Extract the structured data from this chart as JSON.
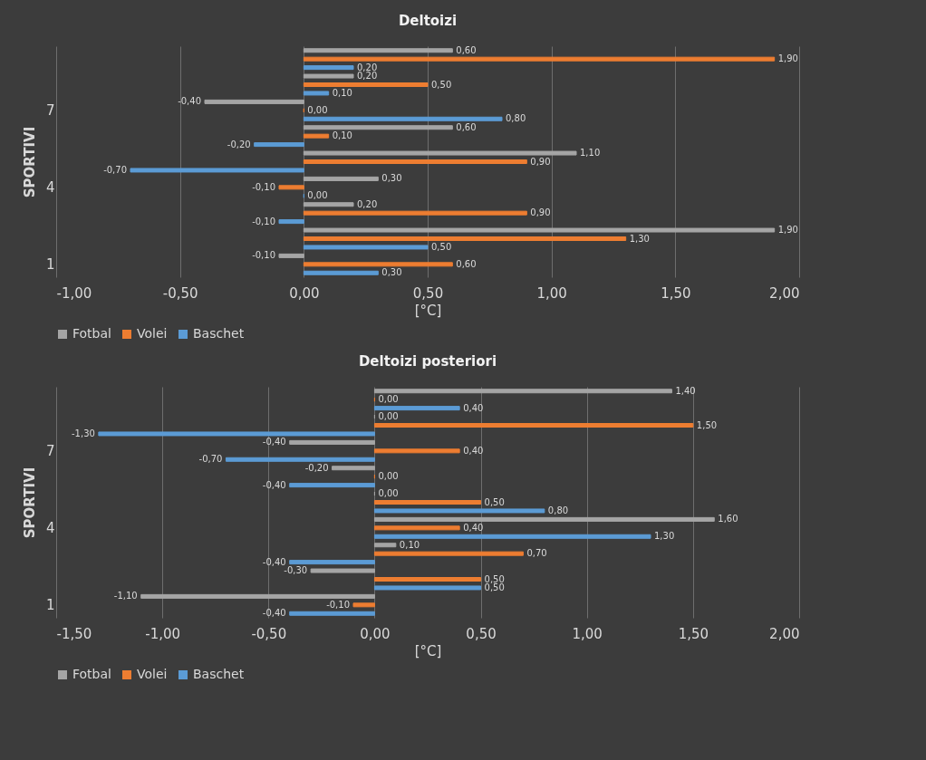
{
  "chart_data": [
    {
      "type": "bar",
      "orientation": "horizontal",
      "title": "Deltoizi",
      "xlabel": "[°C]",
      "ylabel": "SPORTIVI",
      "categories": [
        null,
        null,
        "7",
        null,
        null,
        "4",
        null,
        null,
        "1"
      ],
      "series": [
        {
          "name": "Fotbal",
          "color": "#a5a5a5",
          "values": [
            0.6,
            0.2,
            -0.4,
            0.6,
            1.1,
            0.3,
            0.2,
            1.9,
            -0.1
          ],
          "value_labels": [
            "0,60",
            "0,20",
            "-0,40",
            "0,60",
            "1,10",
            "0,30",
            "0,20",
            "1,90",
            "-0,10"
          ]
        },
        {
          "name": "Volei",
          "color": "#ed7d31",
          "values": [
            1.9,
            0.5,
            0.0,
            0.1,
            0.9,
            -0.1,
            0.9,
            1.3,
            0.6
          ],
          "value_labels": [
            "1,90",
            "0,50",
            "0,00",
            "0,10",
            "0,90",
            "-0,10",
            "0,90",
            "1,30",
            "0,60"
          ]
        },
        {
          "name": "Baschet",
          "color": "#5b9bd5",
          "values": [
            0.2,
            0.1,
            0.8,
            -0.2,
            -0.7,
            0.0,
            -0.1,
            0.5,
            0.3
          ],
          "value_labels": [
            "0,20",
            "0,10",
            "0,80",
            "-0,20",
            "-0,70",
            "0,00",
            "-0,10",
            "0,50",
            "0,30"
          ]
        }
      ],
      "xlim": [
        -1,
        2
      ],
      "xticks": [
        {
          "value": -1,
          "label": "-1,00"
        },
        {
          "value": -0.5,
          "label": "-0,50"
        },
        {
          "value": 0,
          "label": "0,00"
        },
        {
          "value": 0.5,
          "label": "0,50"
        },
        {
          "value": 1,
          "label": "1,00"
        },
        {
          "value": 1.5,
          "label": "1,50"
        },
        {
          "value": 2,
          "label": "2,00"
        }
      ],
      "grid": "x",
      "legend": "bottom"
    },
    {
      "type": "bar",
      "orientation": "horizontal",
      "title": "Deltoizi posteriori",
      "xlabel": "[°C]",
      "ylabel": "SPORTIVI",
      "categories": [
        null,
        null,
        "7",
        null,
        null,
        "4",
        null,
        null,
        "1"
      ],
      "series": [
        {
          "name": "Fotbal",
          "color": "#a5a5a5",
          "values": [
            1.4,
            0.0,
            -0.4,
            -0.2,
            0.0,
            1.6,
            0.1,
            -0.3,
            -1.1
          ],
          "value_labels": [
            "1,40",
            "0,00",
            "-0,40",
            "-0,20",
            "0,00",
            "1,60",
            "0,10",
            "-0,30",
            "-1,10"
          ]
        },
        {
          "name": "Volei",
          "color": "#ed7d31",
          "values": [
            0.0,
            1.5,
            0.4,
            0.0,
            0.5,
            0.4,
            0.7,
            0.5,
            -0.1
          ],
          "value_labels": [
            "0,00",
            "1,50",
            "0,40",
            "0,00",
            "0,50",
            "0,40",
            "0,70",
            "0,50",
            "-0,10"
          ]
        },
        {
          "name": "Baschet",
          "color": "#5b9bd5",
          "values": [
            0.4,
            -1.3,
            -0.7,
            -0.4,
            0.8,
            1.3,
            -0.4,
            0.5,
            -0.4
          ],
          "value_labels": [
            "0,40",
            "-1,30",
            "-0,70",
            "-0,40",
            "0,80",
            "1,30",
            "-0,40",
            "0,50",
            "-0,40"
          ]
        }
      ],
      "xlim": [
        -1.5,
        2
      ],
      "xticks": [
        {
          "value": -1.5,
          "label": "-1,50"
        },
        {
          "value": -1,
          "label": "-1,00"
        },
        {
          "value": -0.5,
          "label": "-0,50"
        },
        {
          "value": 0,
          "label": "0,00"
        },
        {
          "value": 0.5,
          "label": "0,50"
        },
        {
          "value": 1,
          "label": "1,00"
        },
        {
          "value": 1.5,
          "label": "1,50"
        },
        {
          "value": 2,
          "label": "2,00"
        }
      ],
      "grid": "x",
      "legend": "bottom"
    }
  ]
}
